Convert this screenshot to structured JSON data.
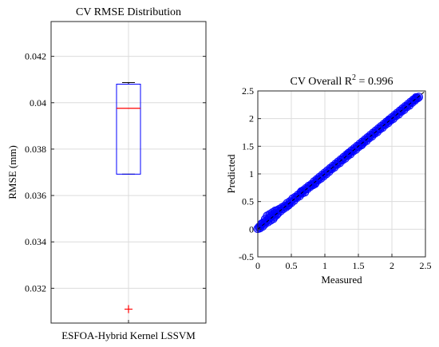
{
  "chart_data": [
    {
      "type": "box",
      "title": "CV RMSE Distribution",
      "xlabel": "",
      "ylabel": "RMSE (mm)",
      "categories": [
        "ESFOA-Hybrid Kernel LSSVM"
      ],
      "ylim": [
        0.0305,
        0.0435
      ],
      "yticks": [
        0.032,
        0.034,
        0.036,
        0.038,
        0.04,
        0.042
      ],
      "ytick_labels": [
        "0.032",
        "0.034",
        "0.036",
        "0.038",
        "0.04",
        "0.042"
      ],
      "grid": true,
      "box": {
        "q1": 0.03692,
        "median": 0.03976,
        "q3": 0.0408,
        "whisker_low": 0.03692,
        "whisker_high": 0.04087,
        "outliers": [
          0.0311
        ]
      },
      "colors": {
        "box": "#0000ff",
        "median": "#ff0000",
        "whisker": "#000000",
        "outlier": "#ff0000"
      }
    },
    {
      "type": "scatter",
      "title_main": "CV Overall R",
      "title_sup": "2",
      "title_rest": " = 0.996",
      "xlabel": "Measured",
      "ylabel": "Predicted",
      "xlim": [
        0,
        2.5
      ],
      "ylim": [
        -0.5,
        2.5
      ],
      "xticks": [
        0,
        0.5,
        1,
        1.5,
        2,
        2.5
      ],
      "xtick_labels": [
        "0",
        "0.5",
        "1",
        "1.5",
        "2",
        "2.5"
      ],
      "yticks": [
        -0.5,
        0,
        0.5,
        1,
        1.5,
        2,
        2.5
      ],
      "ytick_labels": [
        "-0.5",
        "0",
        "0.5",
        "1",
        "1.5",
        "2",
        "2.5"
      ],
      "grid": true,
      "reference_line": {
        "x": [
          0,
          2.5
        ],
        "y": [
          0,
          2.5
        ]
      },
      "colors": {
        "points": "#0000ff",
        "line": "#000000"
      },
      "points": [
        [
          0.0,
          0.01
        ],
        [
          0.02,
          0.04
        ],
        [
          0.03,
          0.02
        ],
        [
          0.05,
          0.08
        ],
        [
          0.06,
          0.1
        ],
        [
          0.07,
          0.05
        ],
        [
          0.09,
          0.12
        ],
        [
          0.1,
          0.09
        ],
        [
          0.11,
          0.18
        ],
        [
          0.13,
          0.15
        ],
        [
          0.14,
          0.24
        ],
        [
          0.15,
          0.13
        ],
        [
          0.17,
          0.2
        ],
        [
          0.18,
          0.27
        ],
        [
          0.19,
          0.16
        ],
        [
          0.21,
          0.25
        ],
        [
          0.22,
          0.3
        ],
        [
          0.23,
          0.19
        ],
        [
          0.25,
          0.28
        ],
        [
          0.26,
          0.33
        ],
        [
          0.28,
          0.26
        ],
        [
          0.29,
          0.34
        ],
        [
          0.3,
          0.29
        ],
        [
          0.32,
          0.36
        ],
        [
          0.34,
          0.33
        ],
        [
          0.36,
          0.39
        ],
        [
          0.38,
          0.37
        ],
        [
          0.4,
          0.42
        ],
        [
          0.42,
          0.4
        ],
        [
          0.44,
          0.47
        ],
        [
          0.46,
          0.44
        ],
        [
          0.48,
          0.5
        ],
        [
          0.5,
          0.48
        ],
        [
          0.52,
          0.55
        ],
        [
          0.54,
          0.52
        ],
        [
          0.56,
          0.58
        ],
        [
          0.58,
          0.57
        ],
        [
          0.6,
          0.62
        ],
        [
          0.62,
          0.6
        ],
        [
          0.64,
          0.66
        ],
        [
          0.66,
          0.65
        ],
        [
          0.68,
          0.7
        ],
        [
          0.7,
          0.67
        ],
        [
          0.72,
          0.74
        ],
        [
          0.74,
          0.73
        ],
        [
          0.76,
          0.78
        ],
        [
          0.78,
          0.77
        ],
        [
          0.8,
          0.81
        ],
        [
          0.82,
          0.8
        ],
        [
          0.84,
          0.86
        ],
        [
          0.86,
          0.84
        ],
        [
          0.88,
          0.9
        ],
        [
          0.9,
          0.89
        ],
        [
          0.92,
          0.94
        ],
        [
          0.94,
          0.92
        ],
        [
          0.96,
          0.98
        ],
        [
          0.98,
          0.96
        ],
        [
          1.0,
          1.02
        ],
        [
          1.02,
          1.0
        ],
        [
          1.04,
          1.06
        ],
        [
          1.06,
          1.04
        ],
        [
          1.08,
          1.1
        ],
        [
          1.1,
          1.09
        ],
        [
          1.12,
          1.14
        ],
        [
          1.14,
          1.12
        ],
        [
          1.16,
          1.18
        ],
        [
          1.18,
          1.17
        ],
        [
          1.2,
          1.22
        ],
        [
          1.22,
          1.2
        ],
        [
          1.24,
          1.26
        ],
        [
          1.26,
          1.25
        ],
        [
          1.28,
          1.3
        ],
        [
          1.3,
          1.28
        ],
        [
          1.32,
          1.34
        ],
        [
          1.34,
          1.33
        ],
        [
          1.36,
          1.38
        ],
        [
          1.38,
          1.36
        ],
        [
          1.4,
          1.42
        ],
        [
          1.42,
          1.41
        ],
        [
          1.44,
          1.46
        ],
        [
          1.46,
          1.44
        ],
        [
          1.48,
          1.5
        ],
        [
          1.5,
          1.49
        ],
        [
          1.52,
          1.54
        ],
        [
          1.54,
          1.52
        ],
        [
          1.56,
          1.58
        ],
        [
          1.58,
          1.57
        ],
        [
          1.6,
          1.62
        ],
        [
          1.62,
          1.6
        ],
        [
          1.64,
          1.66
        ],
        [
          1.66,
          1.65
        ],
        [
          1.68,
          1.7
        ],
        [
          1.7,
          1.68
        ],
        [
          1.72,
          1.74
        ],
        [
          1.74,
          1.73
        ],
        [
          1.76,
          1.78
        ],
        [
          1.78,
          1.76
        ],
        [
          1.8,
          1.82
        ],
        [
          1.82,
          1.81
        ],
        [
          1.84,
          1.86
        ],
        [
          1.86,
          1.84
        ],
        [
          1.88,
          1.9
        ],
        [
          1.9,
          1.89
        ],
        [
          1.92,
          1.94
        ],
        [
          1.94,
          1.92
        ],
        [
          1.96,
          1.98
        ],
        [
          1.98,
          1.97
        ],
        [
          2.0,
          2.02
        ],
        [
          2.02,
          2.0
        ],
        [
          2.04,
          2.06
        ],
        [
          2.06,
          2.05
        ],
        [
          2.08,
          2.1
        ],
        [
          2.1,
          2.08
        ],
        [
          2.12,
          2.14
        ],
        [
          2.14,
          2.13
        ],
        [
          2.16,
          2.18
        ],
        [
          2.18,
          2.16
        ],
        [
          2.2,
          2.22
        ],
        [
          2.22,
          2.21
        ],
        [
          2.24,
          2.26
        ],
        [
          2.26,
          2.24
        ],
        [
          2.28,
          2.3
        ],
        [
          2.3,
          2.29
        ],
        [
          2.32,
          2.34
        ],
        [
          2.34,
          2.33
        ],
        [
          2.36,
          2.38
        ],
        [
          2.38,
          2.37
        ],
        [
          2.4,
          2.39
        ],
        [
          0.85,
          0.82
        ],
        [
          0.65,
          0.68
        ],
        [
          1.35,
          1.37
        ],
        [
          1.55,
          1.53
        ],
        [
          0.45,
          0.43
        ],
        [
          0.25,
          0.23
        ],
        [
          1.95,
          1.96
        ],
        [
          2.35,
          2.36
        ]
      ]
    }
  ]
}
